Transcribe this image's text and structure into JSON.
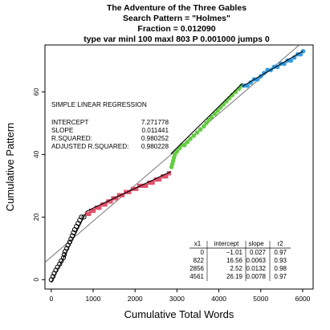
{
  "chart_data": {
    "type": "scatter",
    "title_lines": [
      "The Adventure of the Three Gables",
      "Search Pattern = \"Holmes\"",
      "Fraction = 0.012090",
      "type var minl 100 maxl 803 P 0.001000 jumps 0"
    ],
    "xlabel": "Cumulative Total Words",
    "ylabel": "Cumulative Pattern",
    "xlim": [
      -150,
      6250
    ],
    "ylim": [
      -3,
      75
    ],
    "x_ticks": [
      0,
      1000,
      2000,
      3000,
      4000,
      5000,
      6000
    ],
    "y_ticks": [
      0,
      20,
      40,
      60
    ],
    "regression": {
      "heading": "SIMPLE LINEAR REGRESSION",
      "rows": [
        {
          "label": "INTERCEPT",
          "value": "7.271778"
        },
        {
          "label": "SLOPE",
          "value": "0.011441"
        },
        {
          "label": "R.SQUARED:",
          "value": "0.980252"
        },
        {
          "label": "ADJUSTED R.SQUARED:",
          "value": "0.980228"
        }
      ],
      "intercept": 7.271778,
      "slope": 0.011441
    },
    "segment_table": {
      "headers": [
        "x1",
        "intercept",
        "slope",
        "r2"
      ],
      "rows": [
        [
          "0",
          "−1.01",
          "0.027",
          "0.97"
        ],
        [
          "822",
          "16.56",
          "0.0063",
          "0.93"
        ],
        [
          "2856",
          "2.52",
          "0.0132",
          "0.98"
        ],
        [
          "4561",
          "26.19",
          "0.0078",
          "0.97"
        ]
      ]
    },
    "segments": [
      {
        "x1": 0,
        "x2": 822,
        "intercept": -1.01,
        "slope": 0.027,
        "color": "#000000",
        "marker": "circle-open"
      },
      {
        "x1": 822,
        "x2": 2856,
        "intercept": 16.56,
        "slope": 0.0063,
        "color": "#e0506a",
        "marker": "square"
      },
      {
        "x1": 2856,
        "x2": 4561,
        "intercept": 2.52,
        "slope": 0.0132,
        "color": "#66cc44",
        "marker": "circle"
      },
      {
        "x1": 4561,
        "x2": 6000,
        "intercept": 26.19,
        "slope": 0.0078,
        "color": "#3399dd",
        "marker": "circle"
      }
    ],
    "series": [
      {
        "color": "#000000",
        "marker": "circle-open",
        "points": [
          [
            0,
            0
          ],
          [
            40,
            1
          ],
          [
            70,
            2
          ],
          [
            110,
            3
          ],
          [
            150,
            4
          ],
          [
            200,
            5
          ],
          [
            240,
            6
          ],
          [
            290,
            7
          ],
          [
            310,
            8
          ],
          [
            330,
            9
          ],
          [
            370,
            10
          ],
          [
            400,
            11
          ],
          [
            440,
            12
          ],
          [
            470,
            13
          ],
          [
            500,
            14
          ],
          [
            530,
            15
          ],
          [
            560,
            16
          ],
          [
            600,
            17
          ],
          [
            640,
            18
          ],
          [
            680,
            19
          ],
          [
            720,
            20
          ],
          [
            780,
            20
          ]
        ]
      },
      {
        "color": "#e0506a",
        "marker": "square",
        "points": [
          [
            850,
            21
          ],
          [
            900,
            21
          ],
          [
            950,
            22
          ],
          [
            1010,
            22
          ],
          [
            1080,
            23
          ],
          [
            1150,
            23
          ],
          [
            1220,
            24
          ],
          [
            1290,
            24
          ],
          [
            1360,
            25
          ],
          [
            1420,
            25
          ],
          [
            1480,
            26
          ],
          [
            1550,
            26
          ],
          [
            1620,
            27
          ],
          [
            1700,
            27
          ],
          [
            1780,
            28
          ],
          [
            1860,
            28
          ],
          [
            1950,
            29
          ],
          [
            2030,
            29
          ],
          [
            2100,
            30
          ],
          [
            2180,
            30
          ],
          [
            2260,
            30
          ],
          [
            2340,
            31
          ],
          [
            2420,
            31
          ],
          [
            2500,
            32
          ],
          [
            2580,
            32
          ],
          [
            2660,
            33
          ],
          [
            2740,
            33
          ],
          [
            2810,
            34
          ]
        ]
      },
      {
        "color": "#66cc44",
        "marker": "circle",
        "points": [
          [
            2870,
            36
          ],
          [
            2890,
            37
          ],
          [
            2910,
            38
          ],
          [
            2930,
            39
          ],
          [
            2950,
            40
          ],
          [
            3000,
            41
          ],
          [
            3060,
            42
          ],
          [
            3120,
            43
          ],
          [
            3180,
            43
          ],
          [
            3250,
            44
          ],
          [
            3320,
            45
          ],
          [
            3400,
            46
          ],
          [
            3480,
            47
          ],
          [
            3560,
            48
          ],
          [
            3640,
            49
          ],
          [
            3700,
            50
          ],
          [
            3760,
            51
          ],
          [
            3820,
            52
          ],
          [
            3900,
            53
          ],
          [
            3970,
            54
          ],
          [
            4040,
            55
          ],
          [
            4110,
            56
          ],
          [
            4180,
            57
          ],
          [
            4250,
            58
          ],
          [
            4320,
            59
          ],
          [
            4400,
            60
          ],
          [
            4480,
            61
          ],
          [
            4540,
            62
          ]
        ]
      },
      {
        "color": "#3399dd",
        "marker": "circle",
        "points": [
          [
            4600,
            62
          ],
          [
            4680,
            62
          ],
          [
            4760,
            63
          ],
          [
            4840,
            64
          ],
          [
            4920,
            64
          ],
          [
            5000,
            65
          ],
          [
            5080,
            66
          ],
          [
            5160,
            67
          ],
          [
            5240,
            67
          ],
          [
            5320,
            68
          ],
          [
            5400,
            68
          ],
          [
            5480,
            69
          ],
          [
            5560,
            69
          ],
          [
            5640,
            70
          ],
          [
            5720,
            70
          ],
          [
            5800,
            71
          ],
          [
            5880,
            72
          ],
          [
            5950,
            72
          ],
          [
            6010,
            73
          ]
        ]
      }
    ],
    "grid": false,
    "legend": "none"
  }
}
